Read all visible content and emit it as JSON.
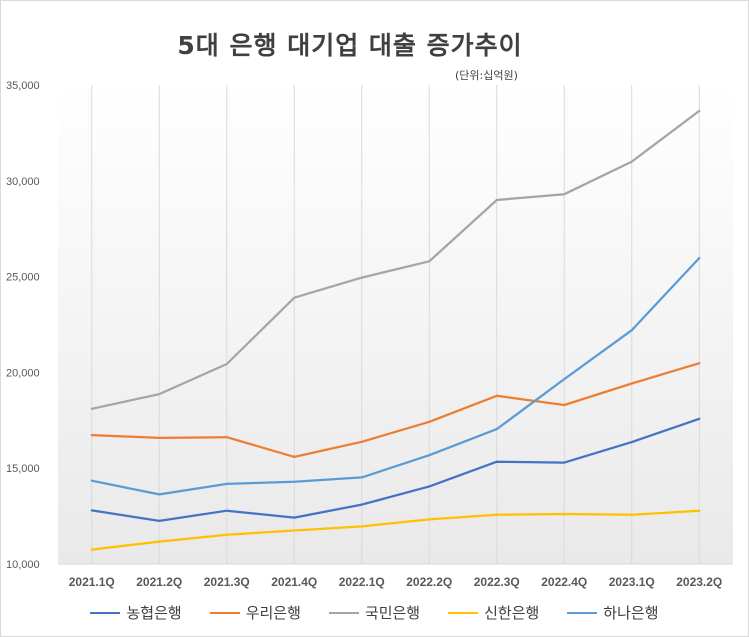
{
  "chart_data": {
    "type": "line",
    "title": "5대 은행 대기업 대출 증가추이",
    "unit_note": "(단위:십억원)",
    "categories": [
      "2021.1Q",
      "2021.2Q",
      "2021.3Q",
      "2021.4Q",
      "2022.1Q",
      "2022.2Q",
      "2022.3Q",
      "2022.4Q",
      "2023.1Q",
      "2023.2Q"
    ],
    "ylim": [
      10000,
      35000
    ],
    "y_ticks": [
      10000,
      15000,
      20000,
      25000,
      30000,
      35000
    ],
    "y_tick_labels": [
      "10,000",
      "15,000",
      "20,000",
      "25,000",
      "30,000",
      "35,000"
    ],
    "grid": "vertical",
    "legend_position": "bottom",
    "series": [
      {
        "name": "농협은행",
        "color": "#4472c4",
        "values": [
          12800,
          12250,
          12780,
          12420,
          13100,
          14050,
          15340,
          15290,
          16360,
          17580
        ]
      },
      {
        "name": "우리은행",
        "color": "#ed7d31",
        "values": [
          16730,
          16580,
          16620,
          15590,
          16380,
          17420,
          18780,
          18300,
          19420,
          20480
        ]
      },
      {
        "name": "국민은행",
        "color": "#a5a5a5",
        "values": [
          18100,
          18870,
          20440,
          23900,
          24950,
          25800,
          29000,
          29300,
          31000,
          33650
        ]
      },
      {
        "name": "신한은행",
        "color": "#ffc000",
        "values": [
          10750,
          11170,
          11530,
          11750,
          11960,
          12330,
          12570,
          12610,
          12570,
          12780
        ]
      },
      {
        "name": "하나은행",
        "color": "#5b9bd5",
        "values": [
          14350,
          13630,
          14180,
          14290,
          14520,
          15680,
          17040,
          19650,
          22200,
          25970
        ]
      }
    ]
  }
}
